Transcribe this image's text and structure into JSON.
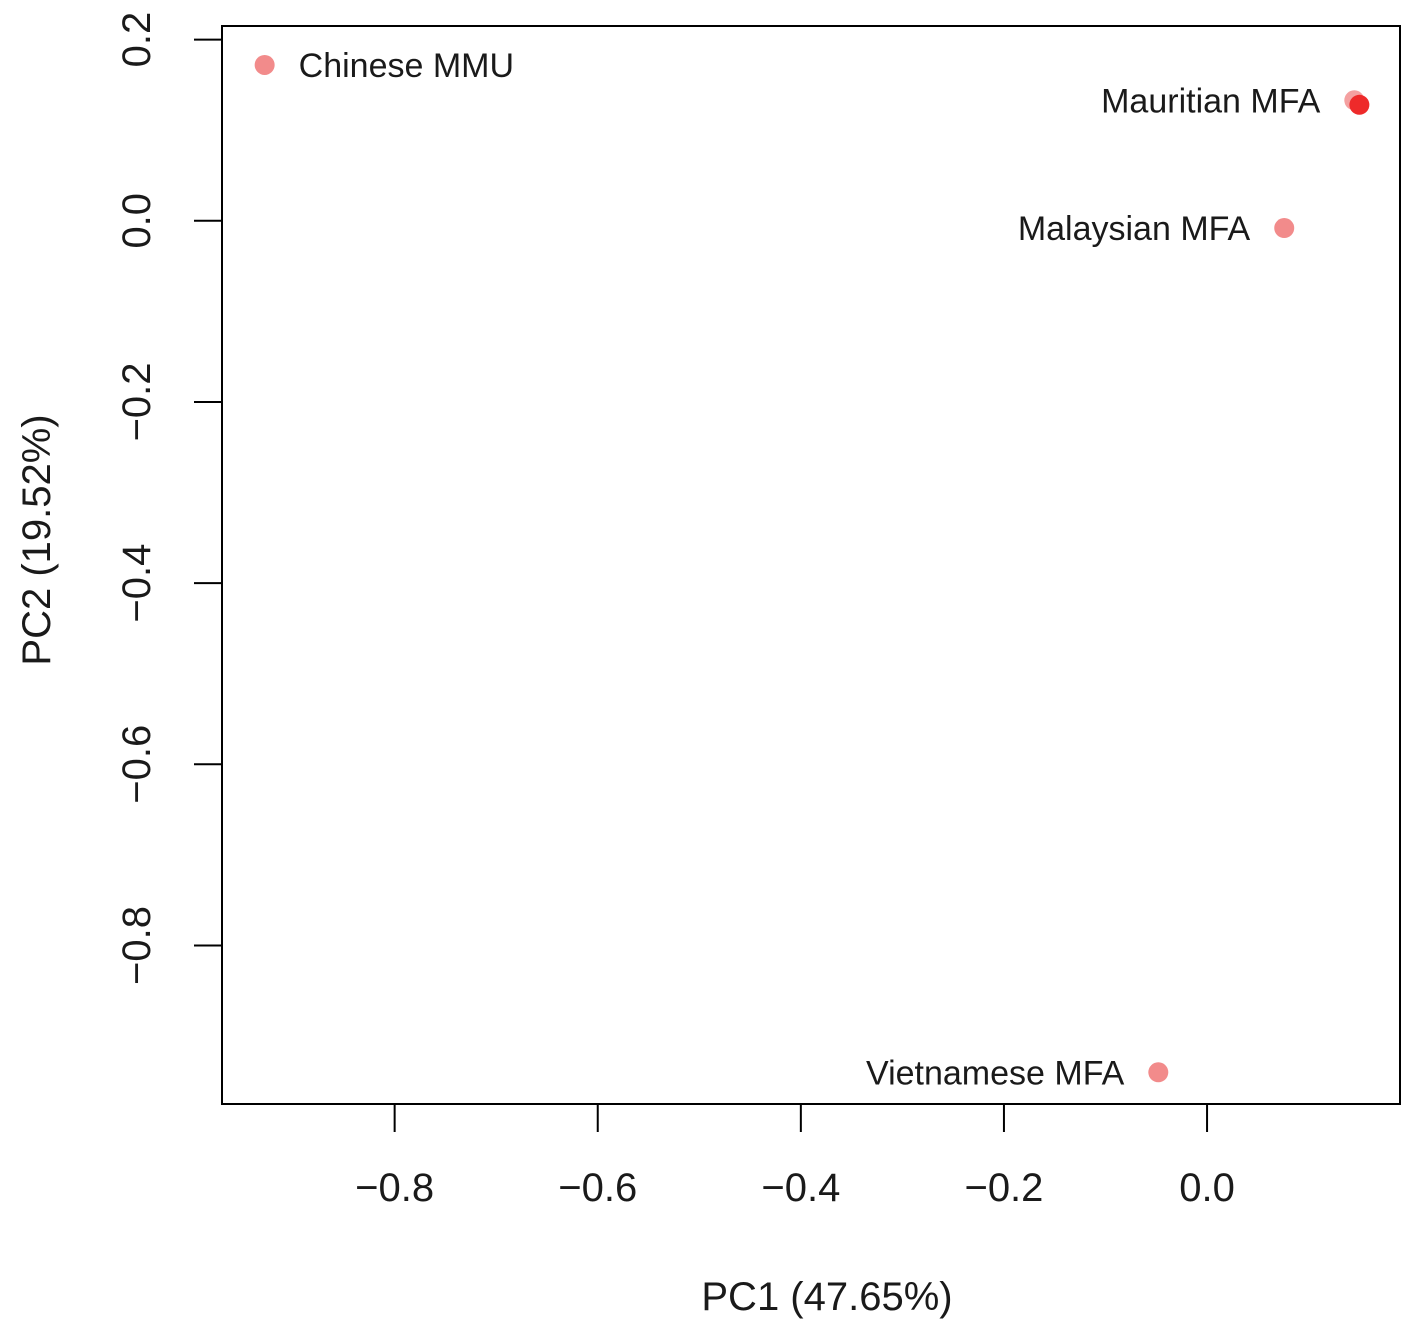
{
  "chart_data": {
    "type": "scatter",
    "title": "",
    "xlabel": "PC1 (47.65%)",
    "ylabel": "PC2 (19.52%)",
    "xlim": [
      -0.97,
      0.19
    ],
    "ylim": [
      -0.975,
      0.215
    ],
    "xticks": [
      {
        "value": -0.8,
        "label": "−0.8"
      },
      {
        "value": -0.6,
        "label": "−0.6"
      },
      {
        "value": -0.4,
        "label": "−0.4"
      },
      {
        "value": -0.2,
        "label": "−0.2"
      },
      {
        "value": 0.0,
        "label": "0.0"
      }
    ],
    "yticks": [
      {
        "value": 0.2,
        "label": "0.2"
      },
      {
        "value": 0.0,
        "label": "0.0"
      },
      {
        "value": -0.2,
        "label": "−0.2"
      },
      {
        "value": -0.4,
        "label": "−0.4"
      },
      {
        "value": -0.6,
        "label": "−0.6"
      },
      {
        "value": -0.8,
        "label": "−0.8"
      }
    ],
    "grid": false,
    "legend": "none",
    "points": [
      {
        "label": "Chinese MMU",
        "x": -0.928,
        "y": 0.172,
        "color": "#f28b8b",
        "label_side": "right"
      },
      {
        "label": "Mauritian MFA",
        "x": 0.145,
        "y": 0.133,
        "color": "#f4a0a0",
        "label_side": "left"
      },
      {
        "label": "",
        "x": 0.15,
        "y": 0.128,
        "color": "#ee2a2a",
        "label_side": "none"
      },
      {
        "label": "Malaysian MFA",
        "x": 0.076,
        "y": -0.008,
        "color": "#f28b8b",
        "label_side": "left"
      },
      {
        "label": "Vietnamese MFA",
        "x": -0.048,
        "y": -0.94,
        "color": "#f28b8b",
        "label_side": "left"
      }
    ]
  }
}
